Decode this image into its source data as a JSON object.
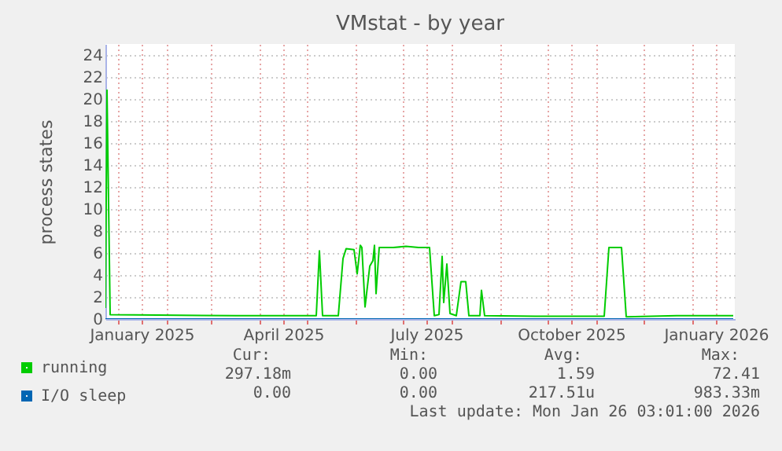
{
  "chart_data": {
    "type": "line",
    "title": "VMstat - by year",
    "ylabel": "process states",
    "xlim": [
      "2024-12-24",
      "2026-01-28"
    ],
    "xticks": [
      {
        "value": "2025-01-01",
        "label": null
      },
      {
        "value": "2025-01-16",
        "label": "January 2025"
      },
      {
        "value": "2025-02-01",
        "label": null
      },
      {
        "value": "2025-03-01",
        "label": null
      },
      {
        "value": "2025-04-01",
        "label": null
      },
      {
        "value": "2025-04-16",
        "label": "April 2025"
      },
      {
        "value": "2025-05-01",
        "label": null
      },
      {
        "value": "2025-06-01",
        "label": null
      },
      {
        "value": "2025-07-01",
        "label": null
      },
      {
        "value": "2025-07-16",
        "label": "July 2025"
      },
      {
        "value": "2025-08-01",
        "label": null
      },
      {
        "value": "2025-09-01",
        "label": null
      },
      {
        "value": "2025-10-01",
        "label": null
      },
      {
        "value": "2025-10-16",
        "label": "October 2025"
      },
      {
        "value": "2025-11-01",
        "label": null
      },
      {
        "value": "2025-12-01",
        "label": null
      },
      {
        "value": "2026-01-01",
        "label": null
      },
      {
        "value": "2026-01-16",
        "label": "January 2026"
      }
    ],
    "ylim": [
      0,
      25
    ],
    "yticks": [
      0,
      2,
      4,
      6,
      8,
      10,
      12,
      14,
      16,
      18,
      20,
      22,
      24
    ],
    "grid": true,
    "legend": "bottom left",
    "series": [
      {
        "name": "running",
        "color": "#00cc00",
        "x": [
          "2024-12-24",
          "2024-12-25",
          "2024-12-27",
          "2025-01-26",
          "2025-03-17",
          "2025-05-06",
          "2025-05-07",
          "2025-05-09",
          "2025-05-11",
          "2025-05-21",
          "2025-05-24",
          "2025-05-26",
          "2025-05-31",
          "2025-06-02",
          "2025-06-04",
          "2025-06-05",
          "2025-06-07",
          "2025-06-10",
          "2025-06-12",
          "2025-06-13",
          "2025-06-14",
          "2025-06-16",
          "2025-06-25",
          "2025-07-03",
          "2025-07-11",
          "2025-07-18",
          "2025-07-21",
          "2025-07-24",
          "2025-07-26",
          "2025-07-27",
          "2025-07-29",
          "2025-07-31",
          "2025-08-04",
          "2025-08-07",
          "2025-08-10",
          "2025-08-12",
          "2025-08-19",
          "2025-08-20",
          "2025-08-22",
          "2025-09-23",
          "2025-11-06",
          "2025-11-09",
          "2025-11-17",
          "2025-11-20",
          "2025-12-22",
          "2026-01-27"
        ],
        "values": [
          1.0,
          20.8,
          0.4,
          0.35,
          0.3,
          0.3,
          0.3,
          6.2,
          0.3,
          0.3,
          5.5,
          6.4,
          6.3,
          4.1,
          6.7,
          6.5,
          1.1,
          4.8,
          5.3,
          6.7,
          2.3,
          6.5,
          6.5,
          6.6,
          6.5,
          6.5,
          0.3,
          0.4,
          5.7,
          1.5,
          5.0,
          0.5,
          0.3,
          3.4,
          3.4,
          0.3,
          0.3,
          2.6,
          0.3,
          0.25,
          0.25,
          6.5,
          6.5,
          0.2,
          0.3,
          0.3
        ]
      },
      {
        "name": "I/O sleep",
        "color": "#0066b3",
        "x": [
          "2024-12-24",
          "2026-01-27"
        ],
        "values": [
          0,
          0
        ]
      }
    ],
    "annotations": [
      "Cur:",
      "Min:",
      "Avg:",
      "Max:",
      "297.18m",
      "0.00",
      "1.59",
      "72.41",
      "0.00",
      "0.00",
      "217.51u",
      "983.33m",
      "Last update: Mon Jan 26 03:01:00 2026"
    ]
  }
}
